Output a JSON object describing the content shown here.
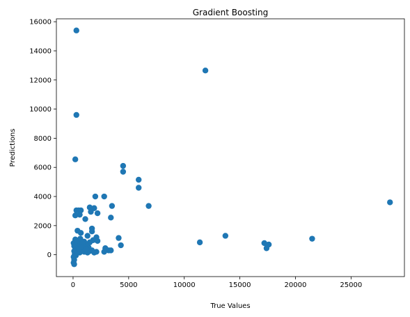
{
  "chart_data": {
    "type": "scatter",
    "title": "Gradient Boosting",
    "xlabel": "True Values",
    "ylabel": "Predictions",
    "xlim": [
      -1500,
      29800
    ],
    "ylim": [
      -1500,
      16200
    ],
    "xticks": [
      0,
      5000,
      10000,
      15000,
      20000,
      25000
    ],
    "yticks": [
      0,
      2000,
      4000,
      6000,
      8000,
      10000,
      12000,
      14000,
      16000
    ],
    "grid": false,
    "marker_color": "#1f77b4",
    "series": [
      {
        "points": [
          [
            300,
            15400
          ],
          [
            11900,
            12650
          ],
          [
            300,
            9600
          ],
          [
            200,
            6550
          ],
          [
            4500,
            6100
          ],
          [
            4500,
            5700
          ],
          [
            5900,
            5150
          ],
          [
            5900,
            4600
          ],
          [
            2000,
            4000
          ],
          [
            2800,
            4000
          ],
          [
            3500,
            3350
          ],
          [
            6800,
            3350
          ],
          [
            28500,
            3600
          ],
          [
            1500,
            3250
          ],
          [
            1900,
            3200
          ],
          [
            300,
            3050
          ],
          [
            500,
            3050
          ],
          [
            700,
            3050
          ],
          [
            1600,
            2950
          ],
          [
            2200,
            2850
          ],
          [
            200,
            2700
          ],
          [
            600,
            2750
          ],
          [
            3400,
            2550
          ],
          [
            1100,
            2450
          ],
          [
            1700,
            1800
          ],
          [
            1700,
            1600
          ],
          [
            400,
            1650
          ],
          [
            700,
            1500
          ],
          [
            13700,
            1300
          ],
          [
            1300,
            1300
          ],
          [
            2100,
            1200
          ],
          [
            4100,
            1150
          ],
          [
            21500,
            1100
          ],
          [
            1800,
            1000
          ],
          [
            2200,
            950
          ],
          [
            200,
            1050
          ],
          [
            11400,
            850
          ],
          [
            17200,
            800
          ],
          [
            17600,
            700
          ],
          [
            17400,
            450
          ],
          [
            1000,
            900
          ],
          [
            1500,
            850
          ],
          [
            4300,
            650
          ],
          [
            600,
            900
          ],
          [
            800,
            700
          ],
          [
            1200,
            650
          ],
          [
            1400,
            500
          ],
          [
            2900,
            450
          ],
          [
            3200,
            300
          ],
          [
            3400,
            300
          ],
          [
            2800,
            200
          ],
          [
            2100,
            200
          ],
          [
            50,
            800
          ],
          [
            100,
            600
          ],
          [
            200,
            500
          ],
          [
            300,
            400
          ],
          [
            400,
            300
          ],
          [
            500,
            200
          ],
          [
            600,
            150
          ],
          [
            700,
            250
          ],
          [
            800,
            350
          ],
          [
            900,
            450
          ],
          [
            1000,
            200
          ],
          [
            1100,
            350
          ],
          [
            1300,
            150
          ],
          [
            1500,
            250
          ],
          [
            1700,
            300
          ],
          [
            1900,
            150
          ],
          [
            100,
            250
          ],
          [
            200,
            150
          ],
          [
            300,
            650
          ],
          [
            400,
            850
          ],
          [
            500,
            550
          ],
          [
            600,
            750
          ],
          [
            900,
            600
          ],
          [
            1200,
            400
          ],
          [
            150,
            50
          ],
          [
            250,
            -50
          ],
          [
            350,
            100
          ],
          [
            50,
            -150
          ],
          [
            100,
            -350
          ],
          [
            50,
            -550
          ],
          [
            100,
            -650
          ],
          [
            450,
            950
          ],
          [
            650,
            1100
          ],
          [
            850,
            800
          ],
          [
            550,
            400
          ],
          [
            750,
            550
          ]
        ]
      }
    ]
  }
}
